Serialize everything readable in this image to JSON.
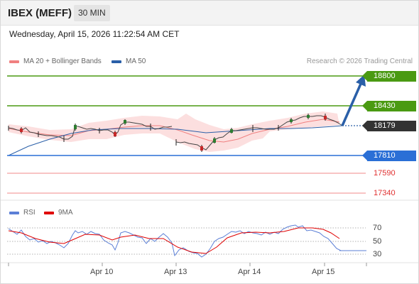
{
  "header": {
    "title": "IBEX (MEFF)",
    "timeframe": "30 MIN"
  },
  "datetime": "Wednesday, April 15, 2026 11:22:54 AM CET",
  "legend": {
    "ma20_bb": "MA 20 + Bollinger Bands",
    "ma50": "MA 50",
    "credit": "Research © 2026 Trading Central"
  },
  "levels": {
    "r2": "18800",
    "r1": "18430",
    "current": "18179",
    "s1": "17810",
    "s2": "17590",
    "s3": "17340"
  },
  "rsi_legend": {
    "rsi": "RSI",
    "ma": "9MA"
  },
  "rsi_ticks": [
    "70",
    "50",
    "30"
  ],
  "dates": [
    "Apr 10",
    "Apr 13",
    "Apr 14",
    "Apr 15"
  ],
  "colors": {
    "resistance": "#4a9a12",
    "support": "#2a6fd6",
    "support_light": "#f4a0a0",
    "current": "#333333",
    "bollinger": "#fcd9d9",
    "ma20": "#f08080",
    "ma50": "#2a5fa8",
    "rsi": "#5b7fd6",
    "rsi_ma": "#e00000"
  }
}
